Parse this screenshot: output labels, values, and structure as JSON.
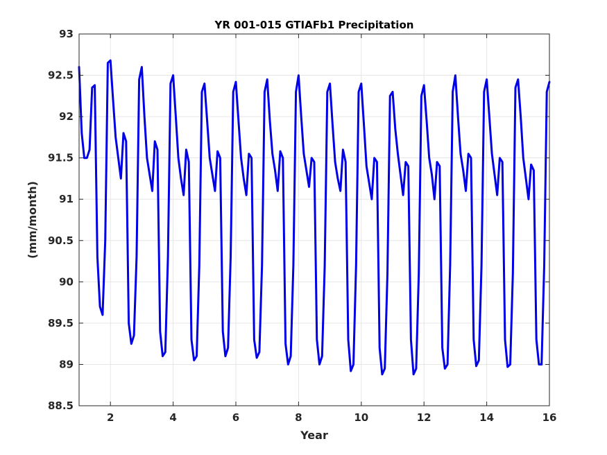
{
  "chart_data": {
    "type": "line",
    "title": "YR 001-015 GTIAFb1 Precipitation",
    "xlabel": "Year",
    "ylabel": "(mm/month)",
    "xlim": [
      1,
      16
    ],
    "ylim": [
      88.5,
      93
    ],
    "xticks": [
      2,
      4,
      6,
      8,
      10,
      12,
      14,
      16
    ],
    "xtick_labels": [
      "2",
      "4",
      "6",
      "8",
      "10",
      "12",
      "14",
      "16"
    ],
    "yticks": [
      88.5,
      89,
      89.5,
      90,
      90.5,
      91,
      91.5,
      92,
      92.5,
      93
    ],
    "ytick_labels": [
      "88.5",
      "89",
      "89.5",
      "90",
      "90.5",
      "91",
      "91.5",
      "92",
      "92.5",
      "93"
    ],
    "grid": true,
    "colors": {
      "series": "#0000e6",
      "axes": "#262626",
      "grid": "#e6e6e6"
    },
    "series": [
      {
        "values": [
          92.6,
          91.8,
          91.5,
          91.5,
          91.6,
          92.35,
          92.38,
          90.3,
          89.7,
          89.6,
          90.5,
          92.65,
          92.68,
          92.2,
          91.75,
          91.5,
          91.25,
          91.8,
          91.7,
          89.5,
          89.25,
          89.35,
          90.3,
          92.45,
          92.6,
          92.0,
          91.5,
          91.3,
          91.1,
          91.7,
          91.6,
          89.4,
          89.1,
          89.15,
          90.3,
          92.4,
          92.5,
          92.0,
          91.5,
          91.25,
          91.05,
          91.6,
          91.45,
          89.3,
          89.05,
          89.1,
          90.2,
          92.3,
          92.4,
          91.95,
          91.5,
          91.3,
          91.1,
          91.58,
          91.5,
          89.4,
          89.1,
          89.2,
          90.3,
          92.3,
          92.42,
          91.95,
          91.5,
          91.25,
          91.05,
          91.55,
          91.5,
          89.3,
          89.08,
          89.15,
          90.2,
          92.3,
          92.45,
          91.95,
          91.55,
          91.35,
          91.1,
          91.58,
          91.5,
          89.25,
          89.0,
          89.1,
          90.2,
          92.3,
          92.5,
          92.0,
          91.55,
          91.35,
          91.15,
          91.5,
          91.45,
          89.3,
          89.0,
          89.1,
          90.2,
          92.3,
          92.4,
          91.9,
          91.45,
          91.25,
          91.1,
          91.6,
          91.45,
          89.3,
          88.92,
          89.0,
          90.2,
          92.3,
          92.4,
          91.9,
          91.4,
          91.2,
          91.0,
          91.5,
          91.45,
          89.2,
          88.88,
          88.95,
          90.1,
          92.25,
          92.3,
          91.85,
          91.55,
          91.3,
          91.05,
          91.45,
          91.4,
          89.3,
          88.88,
          88.95,
          90.1,
          92.25,
          92.38,
          91.95,
          91.5,
          91.3,
          91.0,
          91.45,
          91.4,
          89.2,
          88.95,
          89.0,
          90.2,
          92.3,
          92.5,
          92.0,
          91.55,
          91.35,
          91.1,
          91.55,
          91.5,
          89.3,
          88.98,
          89.05,
          90.2,
          92.3,
          92.45,
          92.0,
          91.55,
          91.3,
          91.05,
          91.5,
          91.45,
          89.3,
          88.97,
          89.0,
          90.1,
          92.35,
          92.45,
          92.0,
          91.5,
          91.25,
          91.0,
          91.42,
          91.35,
          89.3,
          89.0,
          89.0,
          90.2,
          92.3,
          92.42
        ]
      }
    ]
  }
}
